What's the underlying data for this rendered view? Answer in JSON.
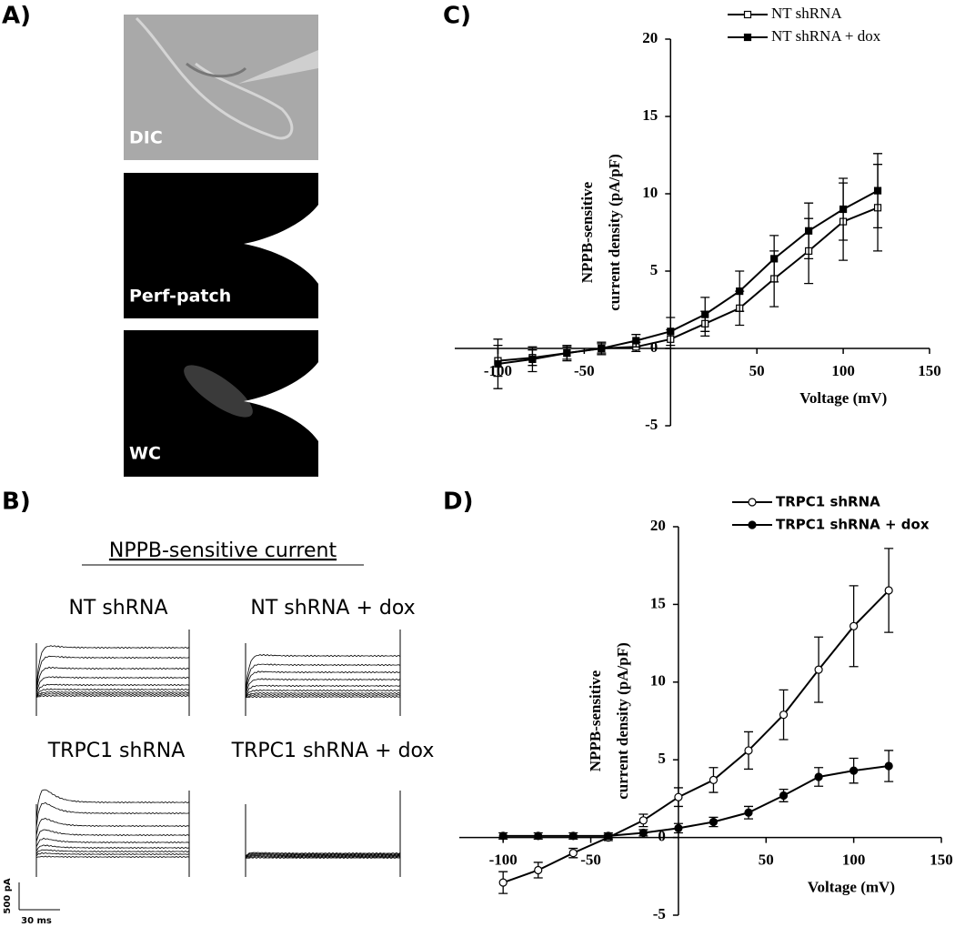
{
  "panel_labels": [
    "A)",
    "B)",
    "C)",
    "D)"
  ],
  "images": [
    "DIC",
    "Perf-patch",
    "WC"
  ],
  "traces": {
    "title": "NPPB-sensitive current",
    "labels": [
      "NT shRNA",
      "NT shRNA + dox",
      "TRPC1  shRNA",
      "TRPC1 shRNA + dox"
    ],
    "scale_y": "500 pA",
    "scale_x": "30 ms"
  },
  "chart_data": [
    {
      "type": "line",
      "x_label": "Voltage (mV)",
      "y_label": [
        "NPPB-sensitive",
        "current density (pA/pF)"
      ],
      "x": [
        -100,
        -80,
        -60,
        -40,
        -20,
        0,
        20,
        40,
        60,
        80,
        100,
        120
      ],
      "xlim": [
        -125,
        150
      ],
      "xticks": [
        -100,
        -50,
        50,
        100,
        150
      ],
      "ylim": [
        -5,
        20
      ],
      "yticks": [
        -5,
        0,
        5,
        10,
        15,
        20
      ],
      "legend": "top",
      "series": [
        {
          "name": "NT shRNA",
          "color": "#000000",
          "marker": "square",
          "filled": false,
          "values": [
            -0.8,
            -0.6,
            -0.3,
            0,
            0.1,
            0.6,
            1.6,
            2.6,
            4.5,
            6.3,
            8.2,
            9.1
          ],
          "errors": [
            1.0,
            0.5,
            0.4,
            0.3,
            0.3,
            0.6,
            0.8,
            1.1,
            1.8,
            2.1,
            2.5,
            2.8
          ]
        },
        {
          "name": "NT shRNA + dox",
          "color": "#000000",
          "marker": "square",
          "filled": true,
          "values": [
            -1.0,
            -0.7,
            -0.3,
            0,
            0.5,
            1.1,
            2.2,
            3.7,
            5.8,
            7.6,
            9.0,
            10.2
          ],
          "errors": [
            1.6,
            0.8,
            0.5,
            0.4,
            0.4,
            0.9,
            1.1,
            1.3,
            1.5,
            1.8,
            2.0,
            2.4
          ]
        }
      ]
    },
    {
      "type": "line",
      "x_label": "Voltage (mV)",
      "y_label": [
        "NPPB-sensitive",
        "current density (pA/pF)"
      ],
      "x": [
        -100,
        -80,
        -60,
        -40,
        -20,
        0,
        20,
        40,
        60,
        80,
        100,
        120
      ],
      "xlim": [
        -125,
        150
      ],
      "xticks": [
        -100,
        -50,
        50,
        100,
        150
      ],
      "ylim": [
        -5,
        20
      ],
      "yticks": [
        -5,
        0,
        5,
        10,
        15,
        20
      ],
      "legend": "top",
      "series": [
        {
          "name": "TRPC1 shRNA",
          "color": "#000000",
          "marker": "circle",
          "filled": false,
          "values": [
            -2.9,
            -2.1,
            -1.0,
            0,
            1.1,
            2.6,
            3.7,
            5.6,
            7.9,
            10.8,
            13.6,
            15.9
          ],
          "errors": [
            0.7,
            0.5,
            0.3,
            0.2,
            0.4,
            0.6,
            0.8,
            1.2,
            1.6,
            2.1,
            2.6,
            2.7
          ]
        },
        {
          "name": "TRPC1 shRNA + dox",
          "color": "#000000",
          "marker": "circle",
          "filled": true,
          "values": [
            0.1,
            0.1,
            0.1,
            0.1,
            0.3,
            0.6,
            1.0,
            1.6,
            2.7,
            3.9,
            4.3,
            4.6
          ],
          "errors": [
            0.2,
            0.2,
            0.2,
            0.2,
            0.2,
            0.3,
            0.3,
            0.4,
            0.4,
            0.6,
            0.8,
            1.0
          ]
        }
      ]
    }
  ]
}
